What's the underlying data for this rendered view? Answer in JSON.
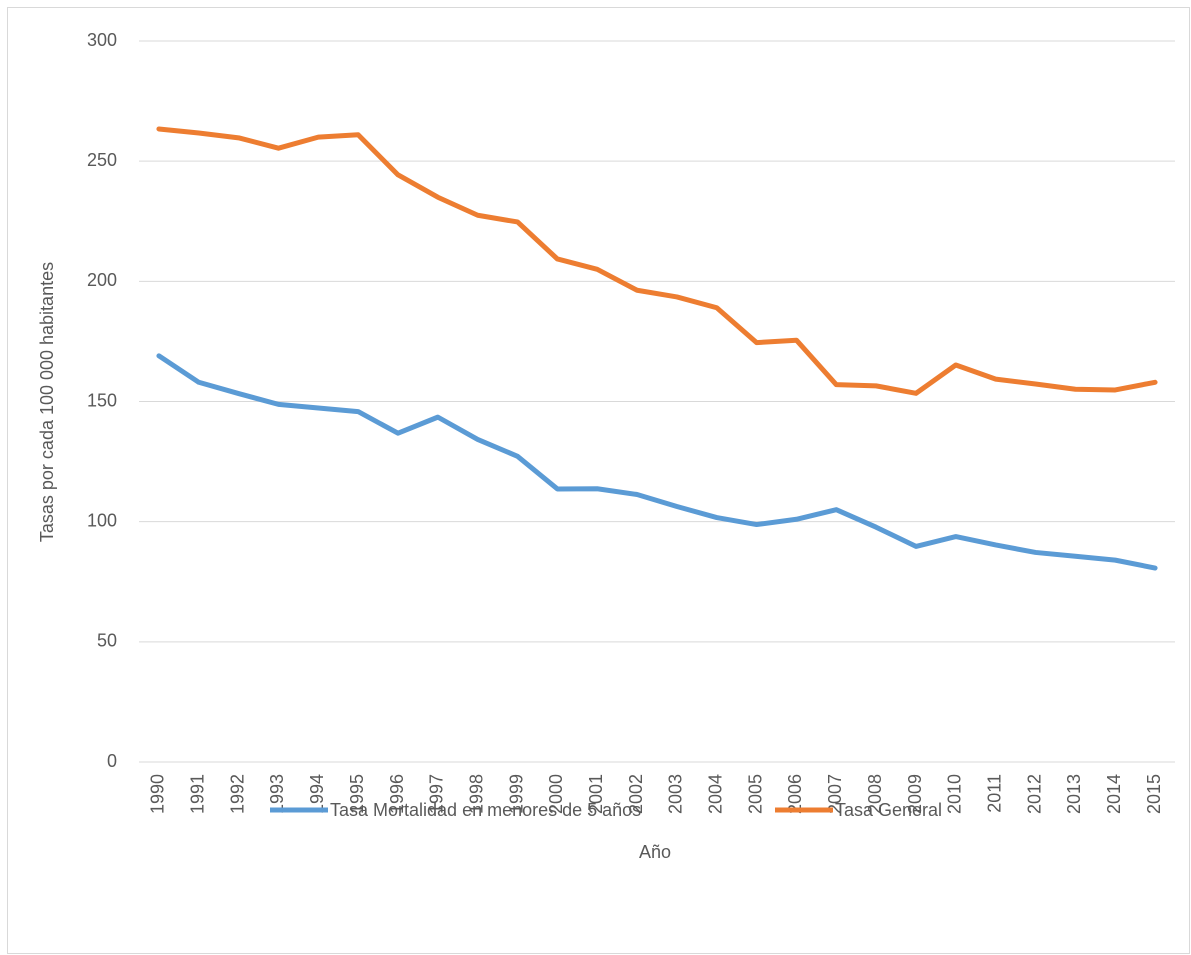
{
  "chart_data": {
    "type": "line",
    "x_label": "Año",
    "y_label": "Tasas por cada 100 000 habitantes",
    "categories": [
      "1990",
      "1991",
      "1992",
      "1993",
      "1994",
      "1995",
      "1996",
      "1997",
      "1998",
      "1999",
      "2000",
      "2001",
      "2002",
      "2003",
      "2004",
      "2005",
      "2006",
      "2007",
      "2008",
      "2009",
      "2010",
      "2011",
      "2012",
      "2013",
      "2014",
      "2015"
    ],
    "series": [
      {
        "name": "Tasa Mortalidad en menores de 5 años",
        "color": "#5b9bd5",
        "values": [
          169,
          158,
          153.3,
          148.8,
          147.3,
          145.8,
          136.8,
          143.5,
          134.2,
          127.2,
          113.6,
          113.7,
          111.3,
          106.3,
          101.7,
          98.8,
          101,
          105,
          97.7,
          89.7,
          93.8,
          90.3,
          87.2,
          85.6,
          84,
          80.7
        ]
      },
      {
        "name": "Tasa General",
        "color": "#ed7d31",
        "values": [
          263.4,
          261.7,
          259.7,
          255.4,
          260,
          261,
          244.3,
          235,
          227.5,
          224.7,
          209.3,
          205,
          196.3,
          193.5,
          189,
          174.5,
          175.5,
          157,
          156.5,
          153.4,
          165.2,
          159.3,
          157.3,
          155.1,
          154.8,
          158
        ]
      }
    ],
    "ylim": [
      0,
      300
    ],
    "yticks": [
      0,
      50,
      100,
      150,
      200,
      250,
      300
    ],
    "grid": true,
    "legend": "bottom"
  }
}
